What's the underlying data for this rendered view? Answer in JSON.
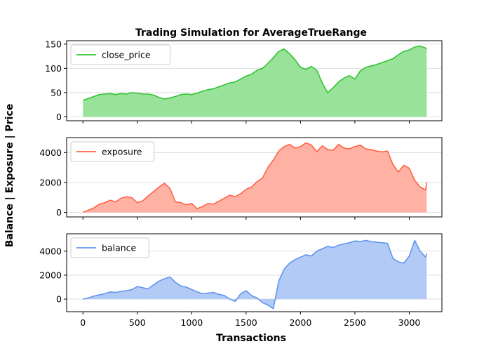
{
  "chart_data": [
    {
      "type": "area",
      "title": "Trading Simulation for AverageTrueRange",
      "xlabel": "",
      "ylabel": "",
      "xlim": [
        -150,
        3300
      ],
      "ylim": [
        -8,
        157
      ],
      "yticks": [
        0,
        50,
        100,
        150
      ],
      "xticks": [
        0,
        500,
        1000,
        1500,
        2000,
        2500,
        3000
      ],
      "show_xticklabels": false,
      "grid": "y",
      "legend_position": "upper-left",
      "series": [
        {
          "name": "close_price",
          "color": "#33c433",
          "fill": "#99e299",
          "x": [
            0,
            50,
            100,
            150,
            200,
            250,
            300,
            350,
            400,
            450,
            500,
            550,
            600,
            650,
            700,
            750,
            800,
            850,
            900,
            950,
            1000,
            1050,
            1100,
            1150,
            1200,
            1250,
            1300,
            1350,
            1400,
            1450,
            1500,
            1550,
            1600,
            1650,
            1700,
            1750,
            1800,
            1850,
            1900,
            1950,
            2000,
            2050,
            2100,
            2150,
            2200,
            2250,
            2300,
            2350,
            2400,
            2450,
            2500,
            2550,
            2600,
            2650,
            2700,
            2750,
            2800,
            2850,
            2900,
            2950,
            3000,
            3050,
            3100,
            3150,
            3160
          ],
          "y": [
            34,
            38,
            42,
            46,
            47,
            48,
            46,
            48,
            47,
            50,
            49,
            47,
            47,
            45,
            40,
            37,
            39,
            42,
            46,
            47,
            46,
            49,
            53,
            56,
            58,
            62,
            66,
            70,
            72,
            78,
            84,
            88,
            96,
            100,
            110,
            122,
            135,
            140,
            130,
            118,
            102,
            98,
            104,
            96,
            70,
            50,
            60,
            72,
            80,
            85,
            78,
            95,
            102,
            105,
            108,
            112,
            116,
            120,
            128,
            135,
            138,
            144,
            146,
            142,
            140
          ]
        }
      ]
    },
    {
      "type": "area",
      "title": "",
      "xlabel": "",
      "ylabel": "",
      "xlim": [
        -150,
        3300
      ],
      "ylim": [
        -300,
        5000
      ],
      "yticks": [
        0,
        2000,
        4000
      ],
      "xticks": [
        0,
        500,
        1000,
        1500,
        2000,
        2500,
        3000
      ],
      "show_xticklabels": false,
      "grid": "y",
      "legend_position": "upper-left",
      "series": [
        {
          "name": "exposure",
          "color": "#ff6347",
          "fill": "#ffb1a3",
          "x": [
            0,
            50,
            100,
            150,
            200,
            250,
            300,
            350,
            400,
            450,
            500,
            550,
            600,
            650,
            700,
            750,
            800,
            850,
            900,
            950,
            1000,
            1050,
            1100,
            1150,
            1200,
            1250,
            1300,
            1350,
            1400,
            1450,
            1500,
            1550,
            1600,
            1650,
            1700,
            1750,
            1800,
            1850,
            1900,
            1950,
            2000,
            2050,
            2100,
            2150,
            2200,
            2250,
            2300,
            2350,
            2400,
            2450,
            2500,
            2550,
            2600,
            2650,
            2700,
            2750,
            2800,
            2850,
            2900,
            2950,
            3000,
            3050,
            3100,
            3150,
            3160
          ],
          "y": [
            0,
            150,
            300,
            550,
            650,
            820,
            700,
            950,
            1050,
            980,
            650,
            780,
            1100,
            1400,
            1700,
            1950,
            1600,
            700,
            650,
            500,
            600,
            250,
            400,
            600,
            550,
            750,
            950,
            1150,
            1050,
            1250,
            1550,
            1700,
            2050,
            2300,
            3000,
            3500,
            4100,
            4400,
            4550,
            4300,
            4400,
            4650,
            4500,
            4050,
            4450,
            4200,
            4150,
            4550,
            4300,
            4250,
            4400,
            4500,
            4250,
            4200,
            4100,
            4050,
            4100,
            3200,
            2700,
            3150,
            2950,
            2150,
            1700,
            1500,
            2000
          ]
        }
      ]
    },
    {
      "type": "area",
      "title": "",
      "xlabel": "Transactions",
      "ylabel": "",
      "xlim": [
        -150,
        3300
      ],
      "ylim": [
        -1050,
        5450
      ],
      "yticks": [
        0,
        2000,
        4000
      ],
      "xticks": [
        0,
        500,
        1000,
        1500,
        2000,
        2500,
        3000
      ],
      "show_xticklabels": true,
      "grid": "y",
      "legend_position": "upper-left",
      "series": [
        {
          "name": "balance",
          "color": "#6495ed",
          "fill": "#b1caf6",
          "x": [
            0,
            50,
            100,
            150,
            200,
            250,
            300,
            350,
            400,
            450,
            500,
            550,
            600,
            650,
            700,
            750,
            800,
            850,
            900,
            950,
            1000,
            1050,
            1100,
            1150,
            1200,
            1250,
            1300,
            1350,
            1400,
            1450,
            1500,
            1550,
            1600,
            1650,
            1700,
            1750,
            1800,
            1850,
            1900,
            1950,
            2000,
            2050,
            2100,
            2150,
            2200,
            2250,
            2300,
            2350,
            2400,
            2450,
            2500,
            2550,
            2600,
            2650,
            2700,
            2750,
            2800,
            2850,
            2900,
            2950,
            3000,
            3050,
            3100,
            3150,
            3160
          ],
          "y": [
            0,
            100,
            250,
            350,
            450,
            600,
            550,
            650,
            700,
            800,
            1050,
            950,
            850,
            1200,
            1500,
            1700,
            1850,
            1400,
            1100,
            1000,
            800,
            600,
            450,
            500,
            550,
            400,
            300,
            0,
            -200,
            450,
            700,
            300,
            100,
            -300,
            -500,
            -800,
            1500,
            2500,
            3000,
            3300,
            3500,
            3700,
            3600,
            4000,
            4200,
            4400,
            4300,
            4500,
            4600,
            4700,
            4850,
            4800,
            4900,
            4800,
            4750,
            4700,
            4650,
            3400,
            3100,
            3000,
            3600,
            4900,
            4000,
            3500,
            3800
          ]
        }
      ]
    }
  ],
  "figure": {
    "shared_ylabel": "Balance | Exposure | Price"
  }
}
